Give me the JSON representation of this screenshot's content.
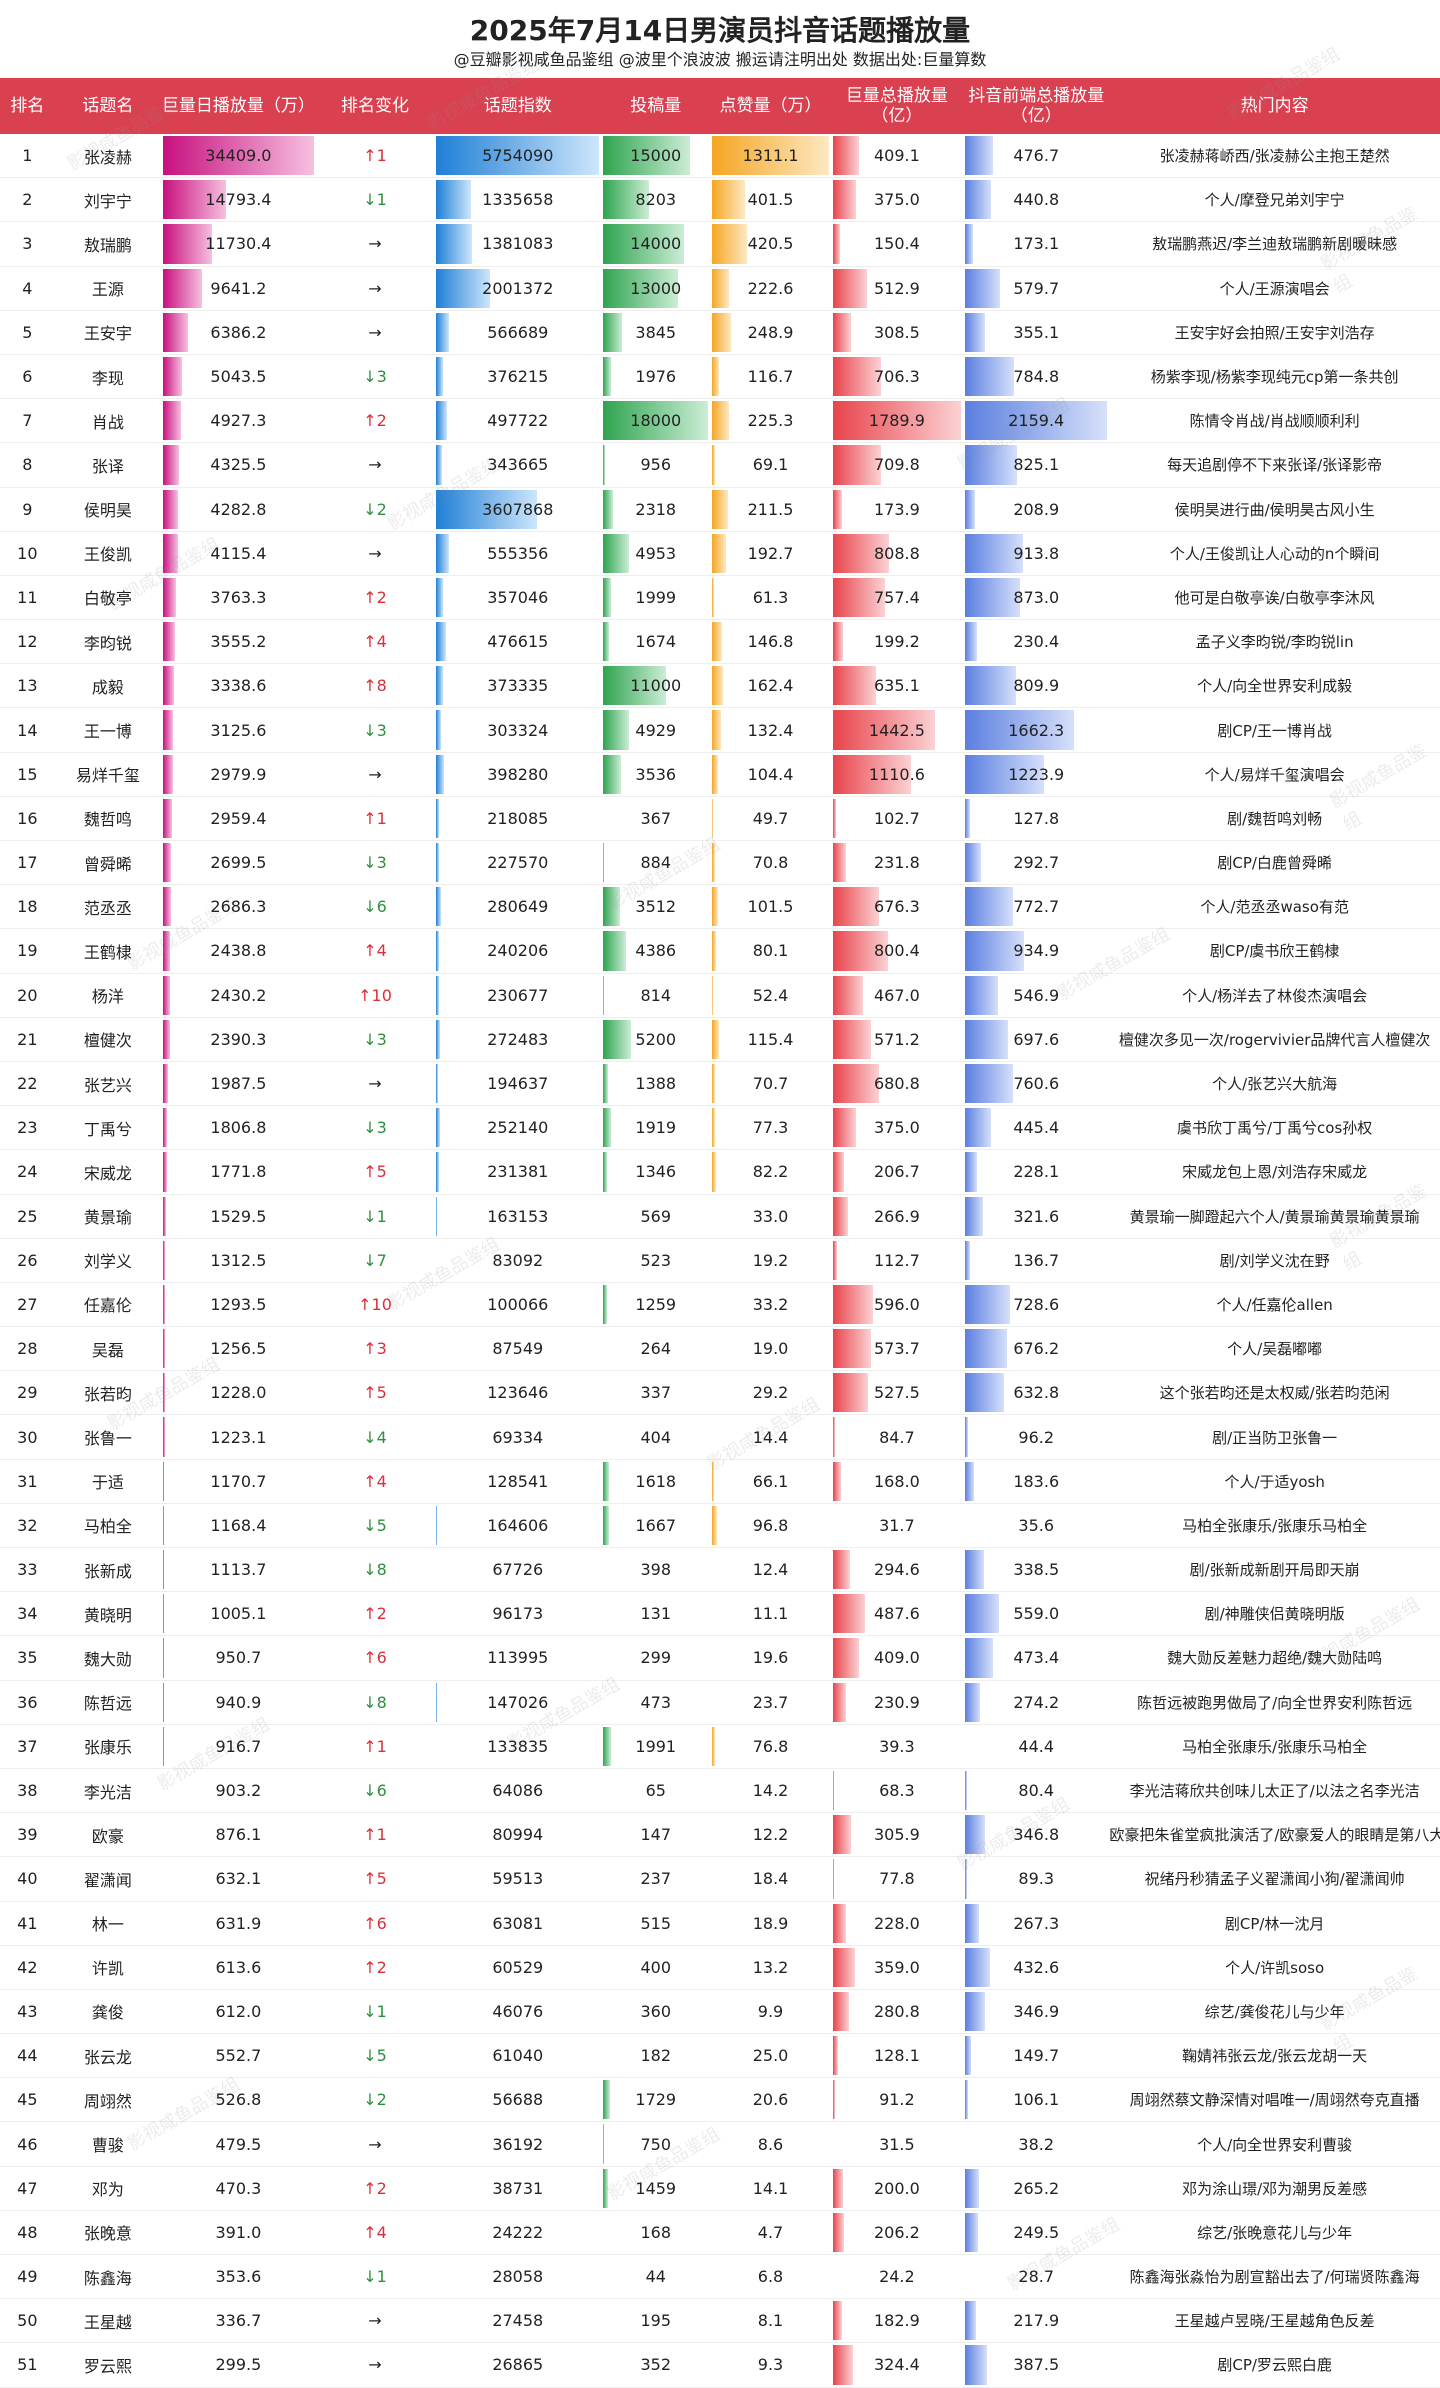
{
  "title": "2025年7月14日男演员抖音话题播放量",
  "subtitle": "@豆瓣影视咸鱼品鉴组 @波里个浪波波  搬运请注明出处  数据出处:巨量算数",
  "watermark": "影视咸鱼品鉴组",
  "columns": [
    "排名",
    "话题名",
    "巨量日播放量（万）",
    "排名变化",
    "话题指数",
    "投稿量",
    "点赞量（万）",
    "巨量总播放量（亿）",
    "抖音前端总播放量（亿）",
    "热门内容"
  ],
  "colors": {
    "header": "#d94050",
    "up": "#d9303a",
    "down": "#2f8f3f",
    "flat": "#3a5dcc"
  },
  "rows": [
    {
      "rank": "1",
      "name": "张凌赫",
      "daily": 34409.0,
      "change": "↑1",
      "dir": "up",
      "index": 5754090,
      "posts": 15000,
      "likes": 1311.1,
      "total": 409.1,
      "front": 476.7,
      "hot": "张凌赫蒋峤西/张凌赫公主抱王楚然"
    },
    {
      "rank": "2",
      "name": "刘宇宁",
      "daily": 14793.4,
      "change": "↓1",
      "dir": "down",
      "index": 1335658,
      "posts": 8203,
      "likes": 401.5,
      "total": 375.0,
      "front": 440.8,
      "hot": "个人/摩登兄弟刘宇宁"
    },
    {
      "rank": "3",
      "name": "敖瑞鹏",
      "daily": 11730.4,
      "change": "→",
      "dir": "flat",
      "index": 1381083,
      "posts": 14000,
      "likes": 420.5,
      "total": 150.4,
      "front": 173.1,
      "hot": "敖瑞鹏燕迟/李兰迪敖瑞鹏新剧暖昧感"
    },
    {
      "rank": "4",
      "name": "王源",
      "daily": 9641.2,
      "change": "→",
      "dir": "flat",
      "index": 2001372,
      "posts": 13000,
      "likes": 222.6,
      "total": 512.9,
      "front": 579.7,
      "hot": "个人/王源演唱会"
    },
    {
      "rank": "5",
      "name": "王安宇",
      "daily": 6386.2,
      "change": "→",
      "dir": "flat",
      "index": 566689,
      "posts": 3845,
      "likes": 248.9,
      "total": 308.5,
      "front": 355.1,
      "hot": "王安宇好会拍照/王安宇刘浩存"
    },
    {
      "rank": "6",
      "name": "李现",
      "daily": 5043.5,
      "change": "↓3",
      "dir": "down",
      "index": 376215,
      "posts": 1976,
      "likes": 116.7,
      "total": 706.3,
      "front": 784.8,
      "hot": "杨紫李现/杨紫李现纯元cp第一条共创"
    },
    {
      "rank": "7",
      "name": "肖战",
      "daily": 4927.3,
      "change": "↑2",
      "dir": "up",
      "index": 497722,
      "posts": 18000,
      "likes": 225.3,
      "total": 1789.9,
      "front": 2159.4,
      "hot": "陈情令肖战/肖战顺顺利利"
    },
    {
      "rank": "8",
      "name": "张译",
      "daily": 4325.5,
      "change": "→",
      "dir": "flat",
      "index": 343665,
      "posts": 956,
      "likes": 69.1,
      "total": 709.8,
      "front": 825.1,
      "hot": "每天追剧停不下来张译/张译影帝"
    },
    {
      "rank": "9",
      "name": "侯明昊",
      "daily": 4282.8,
      "change": "↓2",
      "dir": "down",
      "index": 3607868,
      "posts": 2318,
      "likes": 211.5,
      "total": 173.9,
      "front": 208.9,
      "hot": "侯明昊进行曲/侯明昊古风小生"
    },
    {
      "rank": "10",
      "name": "王俊凯",
      "daily": 4115.4,
      "change": "→",
      "dir": "flat",
      "index": 555356,
      "posts": 4953,
      "likes": 192.7,
      "total": 808.8,
      "front": 913.8,
      "hot": "个人/王俊凯让人心动的n个瞬间"
    },
    {
      "rank": "11",
      "name": "白敬亭",
      "daily": 3763.3,
      "change": "↑2",
      "dir": "up",
      "index": 357046,
      "posts": 1999,
      "likes": 61.3,
      "total": 757.4,
      "front": 873.0,
      "hot": "他可是白敬亭诶/白敬亭李沐风"
    },
    {
      "rank": "12",
      "name": "李昀锐",
      "daily": 3555.2,
      "change": "↑4",
      "dir": "up",
      "index": 476615,
      "posts": 1674,
      "likes": 146.8,
      "total": 199.2,
      "front": 230.4,
      "hot": "孟子义李昀锐/李昀锐lin"
    },
    {
      "rank": "13",
      "name": "成毅",
      "daily": 3338.6,
      "change": "↑8",
      "dir": "up",
      "index": 373335,
      "posts": 11000,
      "likes": 162.4,
      "total": 635.1,
      "front": 809.9,
      "hot": "个人/向全世界安利成毅"
    },
    {
      "rank": "14",
      "name": "王一博",
      "daily": 3125.6,
      "change": "↓3",
      "dir": "down",
      "index": 303324,
      "posts": 4929,
      "likes": 132.4,
      "total": 1442.5,
      "front": 1662.3,
      "hot": "剧CP/王一博肖战"
    },
    {
      "rank": "15",
      "name": "易烊千玺",
      "daily": 2979.9,
      "change": "→",
      "dir": "flat",
      "index": 398280,
      "posts": 3536,
      "likes": 104.4,
      "total": 1110.6,
      "front": 1223.9,
      "hot": "个人/易烊千玺演唱会"
    },
    {
      "rank": "16",
      "name": "魏哲鸣",
      "daily": 2959.4,
      "change": "↑1",
      "dir": "up",
      "index": 218085,
      "posts": 367,
      "likes": 49.7,
      "total": 102.7,
      "front": 127.8,
      "hot": "剧/魏哲鸣刘畅"
    },
    {
      "rank": "17",
      "name": "曾舜晞",
      "daily": 2699.5,
      "change": "↓3",
      "dir": "down",
      "index": 227570,
      "posts": 884,
      "likes": 70.8,
      "total": 231.8,
      "front": 292.7,
      "hot": "剧CP/白鹿曾舜晞"
    },
    {
      "rank": "18",
      "name": "范丞丞",
      "daily": 2686.3,
      "change": "↓6",
      "dir": "down",
      "index": 280649,
      "posts": 3512,
      "likes": 101.5,
      "total": 676.3,
      "front": 772.7,
      "hot": "个人/范丞丞waso有范"
    },
    {
      "rank": "19",
      "name": "王鹤棣",
      "daily": 2438.8,
      "change": "↑4",
      "dir": "up",
      "index": 240206,
      "posts": 4386,
      "likes": 80.1,
      "total": 800.4,
      "front": 934.9,
      "hot": "剧CP/虞书欣王鹤棣"
    },
    {
      "rank": "20",
      "name": "杨洋",
      "daily": 2430.2,
      "change": "↑10",
      "dir": "up",
      "index": 230677,
      "posts": 814,
      "likes": 52.4,
      "total": 467.0,
      "front": 546.9,
      "hot": "个人/杨洋去了林俊杰演唱会"
    },
    {
      "rank": "21",
      "name": "檀健次",
      "daily": 2390.3,
      "change": "↓3",
      "dir": "down",
      "index": 272483,
      "posts": 5200,
      "likes": 115.4,
      "total": 571.2,
      "front": 697.6,
      "hot": "檀健次多见一次/rogervivier品牌代言人檀健次"
    },
    {
      "rank": "22",
      "name": "张艺兴",
      "daily": 1987.5,
      "change": "→",
      "dir": "flat",
      "index": 194637,
      "posts": 1388,
      "likes": 70.7,
      "total": 680.8,
      "front": 760.6,
      "hot": "个人/张艺兴大航海"
    },
    {
      "rank": "23",
      "name": "丁禹兮",
      "daily": 1806.8,
      "change": "↓3",
      "dir": "down",
      "index": 252140,
      "posts": 1919,
      "likes": 77.3,
      "total": 375.0,
      "front": 445.4,
      "hot": "虞书欣丁禹兮/丁禹兮cos孙权"
    },
    {
      "rank": "24",
      "name": "宋威龙",
      "daily": 1771.8,
      "change": "↑5",
      "dir": "up",
      "index": 231381,
      "posts": 1346,
      "likes": 82.2,
      "total": 206.7,
      "front": 228.1,
      "hot": "宋威龙包上恩/刘浩存宋威龙"
    },
    {
      "rank": "25",
      "name": "黄景瑜",
      "daily": 1529.5,
      "change": "↓1",
      "dir": "down",
      "index": 163153,
      "posts": 569,
      "likes": 33.0,
      "total": 266.9,
      "front": 321.6,
      "hot": "黄景瑜一脚蹬起六个人/黄景瑜黄景瑜黄景瑜"
    },
    {
      "rank": "26",
      "name": "刘学义",
      "daily": 1312.5,
      "change": "↓7",
      "dir": "down",
      "index": 83092,
      "posts": 523,
      "likes": 19.2,
      "total": 112.7,
      "front": 136.7,
      "hot": "剧/刘学义沈在野"
    },
    {
      "rank": "27",
      "name": "任嘉伦",
      "daily": 1293.5,
      "change": "↑10",
      "dir": "up",
      "index": 100066,
      "posts": 1259,
      "likes": 33.2,
      "total": 596.0,
      "front": 728.6,
      "hot": "个人/任嘉伦allen"
    },
    {
      "rank": "28",
      "name": "吴磊",
      "daily": 1256.5,
      "change": "↑3",
      "dir": "up",
      "index": 87549,
      "posts": 264,
      "likes": 19.0,
      "total": 573.7,
      "front": 676.2,
      "hot": "个人/吴磊嘟嘟"
    },
    {
      "rank": "29",
      "name": "张若昀",
      "daily": 1228.0,
      "change": "↑5",
      "dir": "up",
      "index": 123646,
      "posts": 337,
      "likes": 29.2,
      "total": 527.5,
      "front": 632.8,
      "hot": "这个张若昀还是太权威/张若昀范闲"
    },
    {
      "rank": "30",
      "name": "张鲁一",
      "daily": 1223.1,
      "change": "↓4",
      "dir": "down",
      "index": 69334,
      "posts": 404,
      "likes": 14.4,
      "total": 84.7,
      "front": 96.2,
      "hot": "剧/正当防卫张鲁一"
    },
    {
      "rank": "31",
      "name": "于适",
      "daily": 1170.7,
      "change": "↑4",
      "dir": "up",
      "index": 128541,
      "posts": 1618,
      "likes": 66.1,
      "total": 168.0,
      "front": 183.6,
      "hot": "个人/于适yosh"
    },
    {
      "rank": "32",
      "name": "马柏全",
      "daily": 1168.4,
      "change": "↓5",
      "dir": "down",
      "index": 164606,
      "posts": 1667,
      "likes": 96.8,
      "total": 31.7,
      "front": 35.6,
      "hot": "马柏全张康乐/张康乐马柏全"
    },
    {
      "rank": "33",
      "name": "张新成",
      "daily": 1113.7,
      "change": "↓8",
      "dir": "down",
      "index": 67726,
      "posts": 398,
      "likes": 12.4,
      "total": 294.6,
      "front": 338.5,
      "hot": "剧/张新成新剧开局即天崩"
    },
    {
      "rank": "34",
      "name": "黄晓明",
      "daily": 1005.1,
      "change": "↑2",
      "dir": "up",
      "index": 96173,
      "posts": 131,
      "likes": 11.1,
      "total": 487.6,
      "front": 559.0,
      "hot": "剧/神雕侠侣黄晓明版"
    },
    {
      "rank": "35",
      "name": "魏大勋",
      "daily": 950.7,
      "change": "↑6",
      "dir": "up",
      "index": 113995,
      "posts": 299,
      "likes": 19.6,
      "total": 409.0,
      "front": 473.4,
      "hot": "魏大勋反差魅力超绝/魏大勋陆鸣"
    },
    {
      "rank": "36",
      "name": "陈哲远",
      "daily": 940.9,
      "change": "↓8",
      "dir": "down",
      "index": 147026,
      "posts": 473,
      "likes": 23.7,
      "total": 230.9,
      "front": 274.2,
      "hot": "陈哲远被跑男做局了/向全世界安利陈哲远"
    },
    {
      "rank": "37",
      "name": "张康乐",
      "daily": 916.7,
      "change": "↑1",
      "dir": "up",
      "index": 133835,
      "posts": 1991,
      "likes": 76.8,
      "total": 39.3,
      "front": 44.4,
      "hot": "马柏全张康乐/张康乐马柏全"
    },
    {
      "rank": "38",
      "name": "李光洁",
      "daily": 903.2,
      "change": "↓6",
      "dir": "down",
      "index": 64086,
      "posts": 65,
      "likes": 14.2,
      "total": 68.3,
      "front": 80.4,
      "hot": "李光洁蒋欣共创味儿太正了/以法之名李光洁"
    },
    {
      "rank": "39",
      "name": "欧豪",
      "daily": 876.1,
      "change": "↑1",
      "dir": "up",
      "index": 80994,
      "posts": 147,
      "likes": 12.2,
      "total": 305.9,
      "front": 346.8,
      "hot": "欧豪把朱雀堂疯批演活了/欧豪爱人的眼睛是第八大洋"
    },
    {
      "rank": "40",
      "name": "翟潇闻",
      "daily": 632.1,
      "change": "↑5",
      "dir": "up",
      "index": 59513,
      "posts": 237,
      "likes": 18.4,
      "total": 77.8,
      "front": 89.3,
      "hot": "祝绪丹秒猜孟子义翟潇闻小狗/翟潇闻帅"
    },
    {
      "rank": "41",
      "name": "林一",
      "daily": 631.9,
      "change": "↑6",
      "dir": "up",
      "index": 63081,
      "posts": 515,
      "likes": 18.9,
      "total": 228.0,
      "front": 267.3,
      "hot": "剧CP/林一沈月"
    },
    {
      "rank": "42",
      "name": "许凯",
      "daily": 613.6,
      "change": "↑2",
      "dir": "up",
      "index": 60529,
      "posts": 400,
      "likes": 13.2,
      "total": 359.0,
      "front": 432.6,
      "hot": "个人/许凯soso"
    },
    {
      "rank": "43",
      "name": "龚俊",
      "daily": 612.0,
      "change": "↓1",
      "dir": "down",
      "index": 46076,
      "posts": 360,
      "likes": 9.9,
      "total": 280.8,
      "front": 346.9,
      "hot": "综艺/龚俊花儿与少年"
    },
    {
      "rank": "44",
      "name": "张云龙",
      "daily": 552.7,
      "change": "↓5",
      "dir": "down",
      "index": 61040,
      "posts": 182,
      "likes": 25.0,
      "total": 128.1,
      "front": 149.7,
      "hot": "鞠婧祎张云龙/张云龙胡一天"
    },
    {
      "rank": "45",
      "name": "周翊然",
      "daily": 526.8,
      "change": "↓2",
      "dir": "down",
      "index": 56688,
      "posts": 1729,
      "likes": 20.6,
      "total": 91.2,
      "front": 106.1,
      "hot": "周翊然蔡文静深情对唱唯一/周翊然夸克直播"
    },
    {
      "rank": "46",
      "name": "曹骏",
      "daily": 479.5,
      "change": "→",
      "dir": "flat",
      "index": 36192,
      "posts": 750,
      "likes": 8.6,
      "total": 31.5,
      "front": 38.2,
      "hot": "个人/向全世界安利曹骏"
    },
    {
      "rank": "47",
      "name": "邓为",
      "daily": 470.3,
      "change": "↑2",
      "dir": "up",
      "index": 38731,
      "posts": 1459,
      "likes": 14.1,
      "total": 200.0,
      "front": 265.2,
      "hot": "邓为涂山璟/邓为潮男反差感"
    },
    {
      "rank": "48",
      "name": "张晚意",
      "daily": 391.0,
      "change": "↑4",
      "dir": "up",
      "index": 24222,
      "posts": 168,
      "likes": 4.7,
      "total": 206.2,
      "front": 249.5,
      "hot": "综艺/张晚意花儿与少年"
    },
    {
      "rank": "49",
      "name": "陈鑫海",
      "daily": 353.6,
      "change": "↓1",
      "dir": "down",
      "index": 28058,
      "posts": 44,
      "likes": 6.8,
      "total": 24.2,
      "front": 28.7,
      "hot": "陈鑫海张淼怡为剧宣豁出去了/何瑞贤陈鑫海"
    },
    {
      "rank": "50",
      "name": "王星越",
      "daily": 336.7,
      "change": "→",
      "dir": "flat",
      "index": 27458,
      "posts": 195,
      "likes": 8.1,
      "total": 182.9,
      "front": 217.9,
      "hot": "王星越卢昱晓/王星越角色反差"
    },
    {
      "rank": "51",
      "name": "罗云熙",
      "daily": 299.5,
      "change": "→",
      "dir": "flat",
      "index": 26865,
      "posts": 352,
      "likes": 9.3,
      "total": 324.4,
      "front": 387.5,
      "hot": "剧CP/罗云熙白鹿"
    }
  ]
}
